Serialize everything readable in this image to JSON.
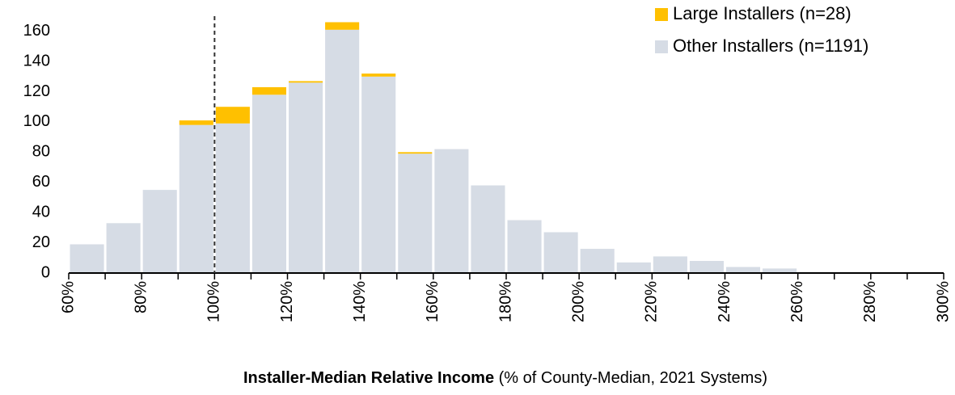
{
  "chart_data": {
    "type": "histogram",
    "x_label": "Installer-Median Relative Income",
    "x_label_note": "(% of County-Median, 2021 Systems)",
    "bins": [
      60,
      70,
      80,
      90,
      100,
      110,
      120,
      130,
      140,
      150,
      160,
      170,
      180,
      190,
      200,
      210,
      220,
      230,
      240,
      250,
      260,
      270,
      280,
      290,
      300
    ],
    "series": [
      {
        "name": "Other Installers (n=1191)",
        "color": "#d6dce5",
        "values": [
          19,
          33,
          55,
          98,
          99,
          118,
          126,
          161,
          130,
          79,
          82,
          58,
          35,
          27,
          16,
          7,
          11,
          8,
          4,
          3,
          0,
          0,
          0,
          0
        ]
      },
      {
        "name": "Large Installers (n=28)",
        "color": "#ffc000",
        "values": [
          0,
          0,
          0,
          3,
          11,
          5,
          1,
          5,
          2,
          1,
          0,
          0,
          0,
          0,
          0,
          0,
          0,
          0,
          0,
          0,
          0,
          0,
          0,
          0
        ]
      }
    ],
    "stacked": true,
    "xlim": [
      60,
      300
    ],
    "xticks": [
      {
        "value": 60,
        "label": "60%"
      },
      {
        "value": 80,
        "label": "80%"
      },
      {
        "value": 100,
        "label": "100%"
      },
      {
        "value": 120,
        "label": "120%"
      },
      {
        "value": 140,
        "label": "140%"
      },
      {
        "value": 160,
        "label": "160%"
      },
      {
        "value": 180,
        "label": "180%"
      },
      {
        "value": 200,
        "label": "200%"
      },
      {
        "value": 220,
        "label": "220%"
      },
      {
        "value": 240,
        "label": "240%"
      },
      {
        "value": 260,
        "label": "260%"
      },
      {
        "value": 280,
        "label": "280%"
      },
      {
        "value": 300,
        "label": "300%"
      }
    ],
    "ylim": [
      0,
      170
    ],
    "yticks": [
      0,
      20,
      40,
      60,
      80,
      100,
      120,
      140,
      160
    ],
    "vline": 100,
    "grid": false,
    "legend": "top-right"
  }
}
